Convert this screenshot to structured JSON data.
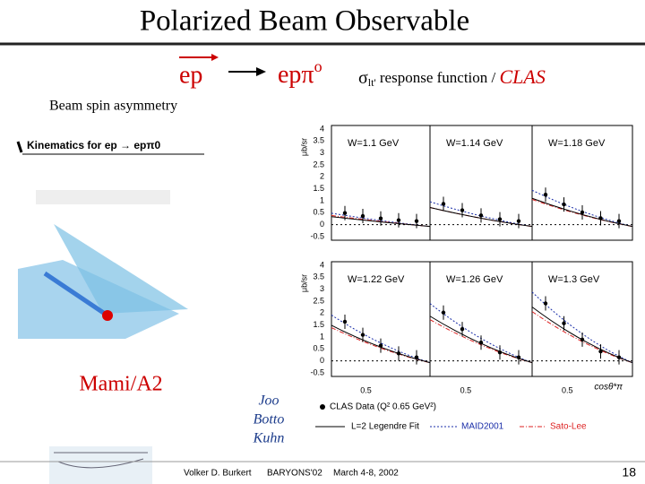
{
  "header": {
    "title": "Polarized Beam Observable",
    "reaction_initial": "ep",
    "reaction_final": "epπ",
    "reaction_final_sup": "o",
    "observable_symbol": "σ",
    "observable_subscript": "lt'",
    "observable_text": " response function / ",
    "observable_source": "CLAS"
  },
  "left": {
    "label": "Beam spin asymmetry",
    "inset_title": "Kinematics for ep → epπ0",
    "source": "Mami/A2"
  },
  "authors": [
    "Joo",
    "Botto",
    "Kuhn"
  ],
  "plot": {
    "y_label": "μb/sr",
    "yticks_top": [
      "4",
      "3.5",
      "3",
      "2.5",
      "2",
      "1.5",
      "1",
      "0.5",
      "0",
      "-0.5"
    ],
    "yticks_bottom": [
      "4",
      "3.5",
      "3",
      "2.5",
      "2",
      "1.5",
      "1",
      "0.5",
      "0",
      "-0.5"
    ],
    "panels": [
      "W=1.1 GeV",
      "W=1.14 GeV",
      "W=1.18 GeV",
      "W=1.22 GeV",
      "W=1.26 GeV",
      "W=1.3 GeV"
    ],
    "xtick": "0.5",
    "x_label": "cosθ*π",
    "legend": [
      "CLAS Data (Q² 0.65 GeV²)",
      "L=2 Legendre Fit",
      "MAID2001",
      "Sato-Lee"
    ]
  },
  "footer": {
    "author": "Volker D. Burkert",
    "conference": "BARYONS'02",
    "date": "March 4-8, 2002",
    "page": "18"
  }
}
